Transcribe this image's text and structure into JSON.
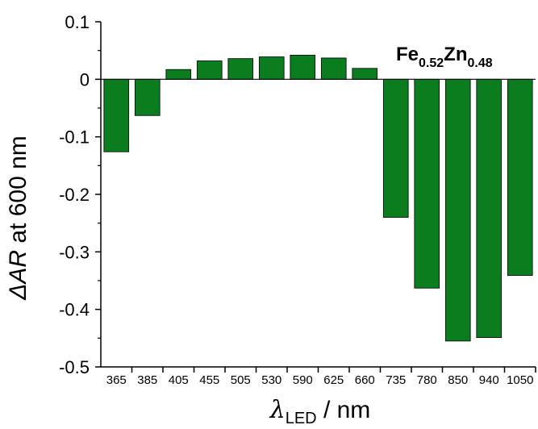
{
  "chart_data": {
    "type": "bar",
    "categories": [
      "365",
      "385",
      "405",
      "455",
      "505",
      "530",
      "590",
      "625",
      "660",
      "735",
      "780",
      "850",
      "940",
      "1050"
    ],
    "values": [
      -0.126,
      -0.063,
      0.017,
      0.032,
      0.036,
      0.039,
      0.042,
      0.037,
      0.019,
      -0.24,
      -0.363,
      -0.455,
      -0.449,
      -0.341
    ],
    "ylim": [
      -0.5,
      0.1
    ],
    "yticks": [
      "0.1",
      "0",
      "-0.1",
      "-0.2",
      "-0.3",
      "-0.4",
      "-0.5"
    ],
    "ytick_values": [
      0.1,
      0,
      -0.1,
      -0.2,
      -0.3,
      -0.4,
      -0.5
    ],
    "ylabel": {
      "prefix": "Δ",
      "italic": "AR",
      "rest": " at 600 nm"
    },
    "xlabel": {
      "symbol": "λ",
      "subscript": "LED",
      "rest": " / nm"
    },
    "annotation": {
      "main1": "Fe",
      "sub1": "0.52",
      "main2": "Zn",
      "sub2": "0.48"
    },
    "bar_color": "#0a7d1e",
    "bar_edge_color": "#000000",
    "grid": false,
    "legend": "none"
  }
}
